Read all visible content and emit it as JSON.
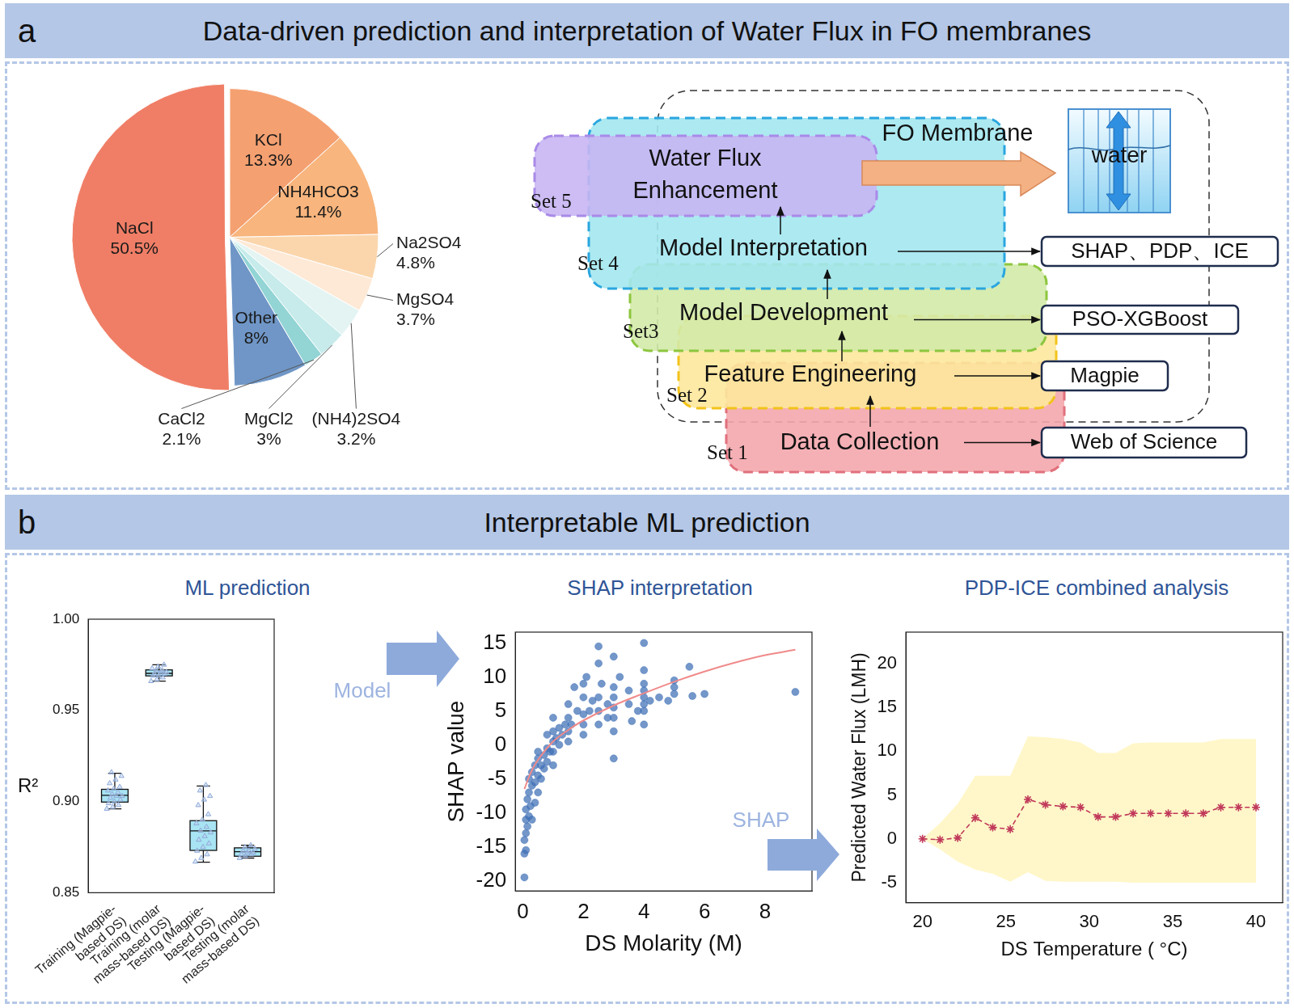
{
  "panels": [
    {
      "letter": "a",
      "title": "Data-driven prediction and interpretation of Water Flux in FO membranes",
      "diagram": {
        "steps": [
          {
            "set": "Set 1",
            "label": "Data Collection",
            "tool": "Web of Science"
          },
          {
            "set": "Set 2",
            "label": "Feature Engineering",
            "tool": "Magpie"
          },
          {
            "set": "Set3",
            "label": "Model Development",
            "tool": "PSO-XGBoost"
          },
          {
            "set": "Set 4",
            "label": "Model Interpretation",
            "tool": "SHAP、PDP、ICE"
          },
          {
            "set": "Set 5",
            "label": "Water Flux Enhancement"
          }
        ],
        "target": "FO Membrane",
        "icon_label": "water"
      }
    },
    {
      "letter": "b",
      "title": "Interpretable ML prediction",
      "subtitles": [
        "ML prediction",
        "SHAP interpretation",
        "PDP-ICE combined analysis"
      ],
      "arrow_labels": [
        "Model",
        "SHAP"
      ]
    }
  ],
  "chart_data": [
    {
      "type": "pie",
      "categories": [
        "KCl",
        "NH4HCO3",
        "Na2SO4",
        "MgSO4",
        "(NH4)2SO4",
        "MgCl2",
        "CaCl2",
        "Other",
        "NaCl"
      ],
      "values": [
        13.3,
        11.4,
        4.8,
        3.7,
        3.2,
        3,
        2.1,
        8,
        50.5
      ],
      "value_labels": [
        "13.3%",
        "11.4%",
        "4.8%",
        "3.7%",
        "3.2%",
        "3%",
        "2.1%",
        "8%",
        "50.5%"
      ],
      "colors": [
        "#f4a071",
        "#f8b57d",
        "#fbd6ad",
        "#fde9d6",
        "#e3f4f3",
        "#c6ebea",
        "#93d4d5",
        "#6f96c6",
        "#f07e66"
      ],
      "data_labels": true
    },
    {
      "type": "box",
      "categories": [
        "Training (Magpie-based DS)",
        "Training (molar mass-based DS)",
        "Testing (Magpie-based DS)",
        "Testing (molar mass-based DS)"
      ],
      "boxes": [
        {
          "min": 0.896,
          "q1": 0.8997,
          "median": 0.9034,
          "q3": 0.9067,
          "max": 0.9155,
          "points": [
            0.896,
            0.897,
            0.898,
            0.899,
            0.9,
            0.901,
            0.902,
            0.903,
            0.903,
            0.904,
            0.905,
            0.906,
            0.907,
            0.908,
            0.91,
            0.912,
            0.914,
            0.916
          ]
        },
        {
          "min": 0.966,
          "q1": 0.9689,
          "median": 0.9703,
          "q3": 0.9722,
          "max": 0.975,
          "points": [
            0.966,
            0.967,
            0.968,
            0.969,
            0.969,
            0.97,
            0.97,
            0.971,
            0.971,
            0.972,
            0.972,
            0.973,
            0.974,
            0.975
          ]
        },
        {
          "min": 0.8667,
          "q1": 0.8732,
          "median": 0.8839,
          "q3": 0.8895,
          "max": 0.9085,
          "points": [
            0.867,
            0.869,
            0.871,
            0.873,
            0.875,
            0.877,
            0.879,
            0.881,
            0.883,
            0.884,
            0.886,
            0.888,
            0.89,
            0.893,
            0.898,
            0.901,
            0.903,
            0.906,
            0.909
          ]
        },
        {
          "min": 0.869,
          "q1": 0.87,
          "median": 0.8725,
          "q3": 0.8746,
          "max": 0.876,
          "points": [
            0.869,
            0.87,
            0.871,
            0.871,
            0.872,
            0.872,
            0.873,
            0.873,
            0.874,
            0.875,
            0.876
          ]
        }
      ],
      "y_label": "R²",
      "ylim": [
        0.85,
        1.0
      ],
      "yticks": [
        0.85,
        {
          "value": 0.9,
          "label": "0.90"
        },
        0.95,
        {
          "value": 1.0,
          "label": "1.00"
        }
      ],
      "color": "#a8e4f3",
      "marker": "triangle",
      "grid": false
    },
    {
      "type": "scatter",
      "x_label": "DS Molarity (M)",
      "y_label": "SHAP value",
      "xlim": [
        -0.25,
        9.55
      ],
      "xticks": [
        0,
        2,
        4,
        6,
        8
      ],
      "ylim": [
        -21.5,
        16.6
      ],
      "yticks": [
        -20,
        -15,
        -10,
        -5,
        0,
        5,
        10,
        15
      ],
      "grid": false,
      "series": [
        {
          "type": "scatter",
          "color": "#3f6fb5",
          "marker": "circle",
          "x": [
            0.05,
            0.05,
            0.05,
            0.1,
            0.1,
            0.1,
            0.1,
            0.15,
            0.15,
            0.2,
            0.2,
            0.2,
            0.25,
            0.3,
            0.3,
            0.3,
            0.4,
            0.4,
            0.4,
            0.5,
            0.5,
            0.5,
            0.5,
            0.6,
            0.6,
            0.7,
            0.7,
            0.8,
            0.8,
            0.8,
            0.9,
            1,
            1,
            1,
            1,
            1,
            1.1,
            1.2,
            1.2,
            1.3,
            1.4,
            1.5,
            1.5,
            1.5,
            1.5,
            1.6,
            1.7,
            1.8,
            2,
            2,
            2,
            2,
            2,
            2.1,
            2.2,
            2.3,
            2.5,
            2.5,
            2.5,
            2.5,
            2.5,
            2.6,
            2.8,
            2.8,
            3,
            3,
            3,
            3,
            3,
            3,
            3,
            3.2,
            3.5,
            3.5,
            3.6,
            3.8,
            4,
            4,
            4,
            4,
            4,
            4,
            4,
            4,
            4.2,
            4.5,
            4.8,
            5,
            5,
            5,
            5.5,
            5.6,
            6,
            9
          ],
          "values": [
            -19.5,
            -16,
            -14,
            -15.5,
            -13,
            -11,
            -9.5,
            -12,
            -8,
            -10.5,
            -7,
            -5,
            -9,
            -11,
            -6,
            -4,
            -8.5,
            -5.5,
            -3,
            -7,
            -4.5,
            -2,
            -1,
            -5,
            -3,
            -3.5,
            -1.5,
            -2.5,
            -0.5,
            1.5,
            -1,
            -3,
            -1,
            0.5,
            2,
            4,
            1,
            0,
            2.5,
            1.5,
            3,
            0.5,
            2,
            4,
            6,
            3,
            8.5,
            5,
            1.5,
            3,
            4.5,
            7,
            9,
            10,
            5,
            6.5,
            3,
            5,
            7,
            12,
            14.5,
            9,
            4,
            6,
            -2,
            2,
            4,
            5.5,
            7,
            8.5,
            13,
            10,
            6,
            8,
            3.5,
            5,
            3,
            5,
            6,
            7,
            8,
            9,
            11,
            15,
            6.5,
            7,
            6.5,
            7.5,
            8.5,
            9.5,
            11.5,
            7.2,
            7.5,
            7.8
          ]
        },
        {
          "type": "line",
          "color": "#f08a8a",
          "line_style": "solid",
          "x": [
            0.05,
            0.25,
            0.5,
            1,
            1.5,
            2,
            3,
            4,
            5,
            6,
            7,
            8,
            9
          ],
          "values": [
            -6.5,
            -4.2,
            -2.2,
            0.5,
            2.2,
            3.6,
            5.8,
            7.6,
            9.3,
            10.8,
            12.1,
            13.2,
            14
          ]
        }
      ]
    },
    {
      "type": "line",
      "x_label": "DS Temperature ( °C)",
      "y_label": "Predicted Water Flux (LMH)",
      "xlim": [
        19,
        41.6
      ],
      "xticks": [
        20,
        25,
        30,
        35,
        40
      ],
      "ylim": [
        -7.3,
        23.6
      ],
      "yticks": [
        -5,
        0,
        5,
        10,
        15,
        20
      ],
      "grid": false,
      "x": [
        20,
        21.05,
        22.11,
        23.16,
        24.21,
        25.26,
        26.32,
        27.37,
        28.42,
        29.47,
        30.53,
        31.58,
        32.63,
        33.68,
        34.74,
        35.79,
        36.84,
        37.89,
        38.95,
        40
      ],
      "series": [
        {
          "color": "#c0395a",
          "marker": "star",
          "line_style": "dashed",
          "values": [
            0,
            -0.1,
            0.1,
            2.4,
            1.3,
            1.1,
            4.5,
            3.9,
            3.7,
            3.6,
            2.5,
            2.5,
            2.9,
            2.9,
            2.9,
            2.9,
            2.9,
            3.6,
            3.6,
            3.6
          ]
        }
      ],
      "band": {
        "color": "#fff7c9",
        "upper": [
          0,
          1.8,
          4,
          7.2,
          7.2,
          7.2,
          11.7,
          11.6,
          11.4,
          11,
          9.8,
          9.8,
          10.9,
          11,
          11,
          11,
          11,
          11.4,
          11.4,
          11.4
        ],
        "lower": [
          0,
          -1.2,
          -2.6,
          -3.5,
          -4,
          -4.9,
          -3.8,
          -4.8,
          -4.9,
          -4.9,
          -4.9,
          -4.9,
          -5,
          -5,
          -5,
          -5,
          -5,
          -5,
          -5,
          -5
        ]
      }
    }
  ]
}
